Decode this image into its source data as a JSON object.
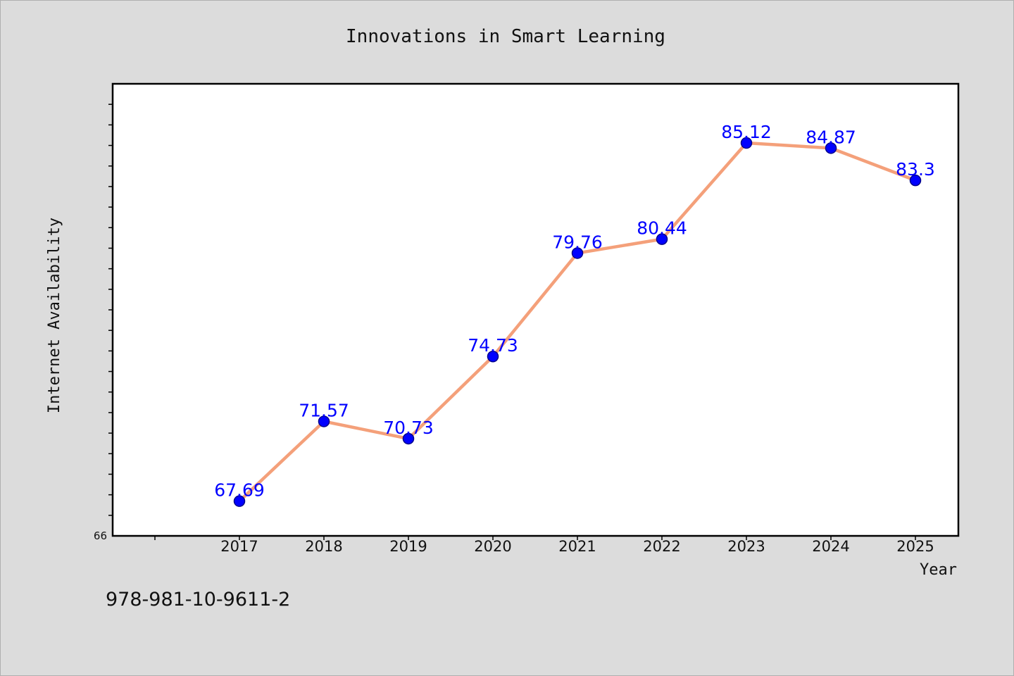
{
  "chart_data": {
    "type": "line",
    "title": "Innovations in Smart Learning",
    "xlabel": "Year",
    "ylabel": "Internet Availability",
    "x": [
      "2017",
      "2018",
      "2019",
      "2020",
      "2021",
      "2022",
      "2023",
      "2024",
      "2025"
    ],
    "series": [
      {
        "values": [
          67.69,
          71.57,
          70.73,
          74.73,
          79.76,
          80.44,
          85.12,
          84.87,
          83.3
        ],
        "labels": [
          "67.69",
          "71.57",
          "70.73",
          "74.73",
          "79.76",
          "80.44",
          "85.12",
          "84.87",
          "83.3"
        ],
        "line_color": "#f4a07a",
        "marker_color": "#0000ff"
      }
    ],
    "ylim": [
      66,
      88
    ],
    "y_tick_labels": [
      "66"
    ],
    "grid": false,
    "legend": "none"
  },
  "footnote": "978-981-10-9611-2"
}
